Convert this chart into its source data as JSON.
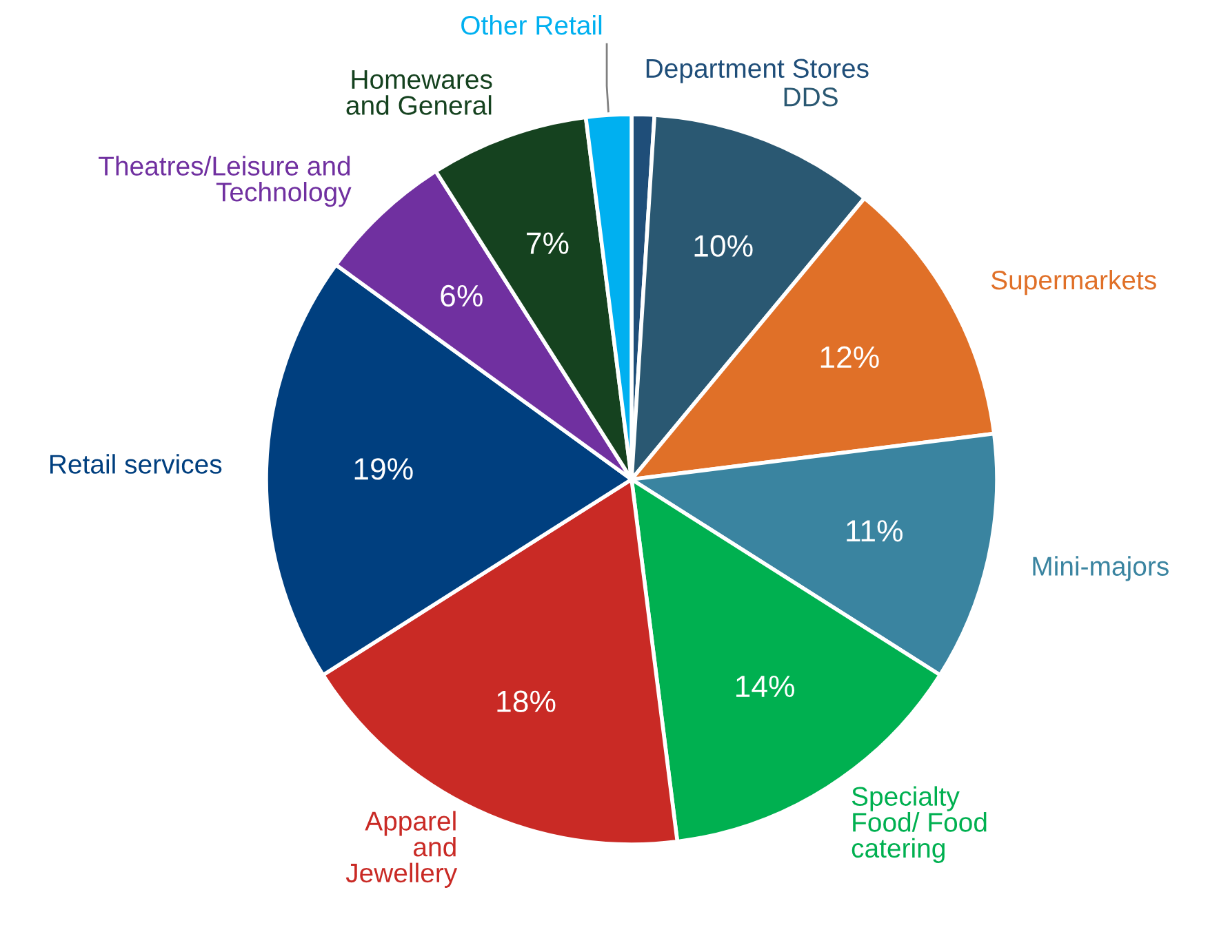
{
  "chart_data": {
    "type": "pie",
    "categories": [
      "Department Stores",
      "DDS",
      "Supermarkets",
      "Mini-majors",
      "Specialty\nFood/ Food\ncatering",
      "Apparel\nand\nJewellery",
      "Retail services",
      "Theatres/Leisure and\nTechnology",
      "Homewares\nand General",
      "Other Retail"
    ],
    "values": [
      1,
      10,
      12,
      11,
      14,
      18,
      19,
      6,
      7,
      2
    ],
    "value_labels": [
      null,
      "10%",
      "12%",
      "11%",
      "14%",
      "18%",
      "19%",
      "6%",
      "7%",
      null
    ],
    "colors": [
      "#1f4e79",
      "#2a5872",
      "#e07028",
      "#3a84a0",
      "#00b050",
      "#c92a25",
      "#003f7f",
      "#7030a0",
      "#15421f",
      "#00b0f0"
    ],
    "legend": false
  }
}
